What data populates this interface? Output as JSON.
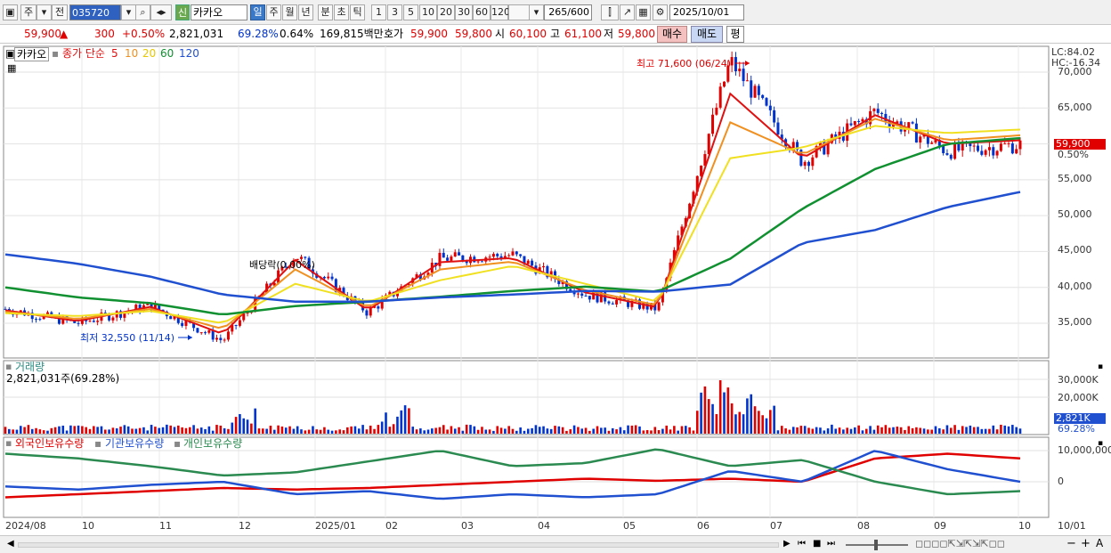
{
  "toolbar": {
    "market_select": "주",
    "prev_label": "전",
    "code": "035720",
    "shin_label": "신",
    "stock_name": "카카오",
    "periods": [
      "일",
      "주",
      "월",
      "년",
      "분",
      "초",
      "틱"
    ],
    "active_period": "일",
    "intervals": [
      "1",
      "3",
      "5",
      "10",
      "20",
      "30",
      "60",
      "120"
    ],
    "count": "265/600",
    "date": "2025/10/01"
  },
  "quote": {
    "price": "59,900",
    "change": "300",
    "change_pct": "+0.50%",
    "volume": "2,821,031",
    "volume_ratio": "69.28%",
    "turnover": "0.64%",
    "trade_value": "169,815백만",
    "bid_label": "호가",
    "ask": "59,900",
    "bid": "59,800",
    "open_label": "시",
    "open": "60,100",
    "high_label": "고",
    "high": "61,100",
    "low_label": "저",
    "low": "59,800",
    "buy_label": "매수",
    "sell_label": "매도",
    "avg_label": "평"
  },
  "price_panel": {
    "name_tag": "카카오",
    "ma_title": "종가 단순",
    "ma_periods": [
      "5",
      "10",
      "20",
      "60",
      "120"
    ],
    "lc": "LC:84.02",
    "hc": "HC:-16.34",
    "y_ticks": [
      "70,000",
      "65,000",
      "60,000",
      "55,000",
      "50,000",
      "45,000",
      "40,000",
      "35,000"
    ],
    "current_price_tag": "59,900",
    "current_pct_tag": "0.50%",
    "high_annotation": "최고 71,600 (06/24)",
    "low_annotation": "최저 32,550 (11/14)",
    "center_annotation": "배당락(0.00%)"
  },
  "volume_panel": {
    "title": "거래량",
    "value": "2,821,031주(69.28%)",
    "y_ticks": [
      "30,000K",
      "20,000K"
    ],
    "current_tag": "2,821K",
    "current_pct_tag": "69.28%"
  },
  "holdings_panel": {
    "legend": [
      "외국인보유수량",
      "기관보유수량",
      "개인보유수량"
    ],
    "y_ticks": [
      "10,000,000",
      "0"
    ]
  },
  "x_axis": [
    "2024/08",
    "10",
    "11",
    "12",
    "2025/01",
    "02",
    "03",
    "04",
    "05",
    "06",
    "07",
    "08",
    "09",
    "10",
    "10/01"
  ],
  "colors": {
    "up": "#e00000",
    "down": "#0033cc",
    "ma5": "#e01010",
    "ma10": "#f09020",
    "ma20": "#f0e020",
    "ma60": "#109030",
    "ma120": "#2050d0",
    "foreign": "#e00000",
    "institution": "#2050d0",
    "individual": "#2a8a50"
  },
  "chart_data": {
    "type": "line",
    "title": "",
    "x_range": [
      "2024/08",
      "2025/10/01"
    ],
    "ylim": [
      32000,
      72000
    ],
    "price_close": {
      "x": [
        "2024/08",
        "2024/09",
        "2024/10",
        "2024/11/14",
        "2024/12",
        "2025/01",
        "2025/02",
        "2025/03",
        "2025/04",
        "2025/05",
        "2025/06/24",
        "2025/07",
        "2025/08",
        "2025/09",
        "2025/10/01"
      ],
      "values": [
        37000,
        35000,
        37500,
        32550,
        44500,
        36500,
        44000,
        44500,
        39000,
        37000,
        71600,
        57500,
        64500,
        59000,
        59900
      ]
    },
    "series": [
      {
        "name": "5",
        "values": [
          36800,
          35300,
          37300,
          33500,
          43800,
          36800,
          43500,
          44100,
          39300,
          37200,
          67000,
          58000,
          64000,
          60000,
          60500
        ]
      },
      {
        "name": "10",
        "values": [
          36600,
          35600,
          37000,
          34200,
          42500,
          37200,
          42500,
          43600,
          39600,
          37500,
          63000,
          58500,
          63500,
          60500,
          61200
        ]
      },
      {
        "name": "20",
        "values": [
          36400,
          36000,
          36700,
          35000,
          40500,
          38000,
          41000,
          43000,
          40500,
          38000,
          58000,
          59500,
          62500,
          61500,
          62000
        ]
      },
      {
        "name": "60",
        "values": [
          40000,
          38600,
          37800,
          36200,
          37400,
          38000,
          38700,
          39500,
          40100,
          39400,
          44000,
          51000,
          56500,
          60000,
          60800
        ]
      },
      {
        "name": "120",
        "values": [
          44600,
          43300,
          41500,
          39000,
          38000,
          38000,
          38600,
          39000,
          39500,
          39400,
          40400,
          46200,
          48000,
          51200,
          53300
        ]
      }
    ],
    "volume": {
      "current": 2821031,
      "ylim": [
        0,
        35000000
      ]
    },
    "holdings": {
      "ylim": [
        -6000000,
        12000000
      ],
      "series": [
        {
          "name": "외국인보유수량",
          "values": [
            -5000000,
            -4000000,
            -3000000,
            -2000000,
            -2500000,
            -2000000,
            -1000000,
            0,
            1000000,
            300000,
            1000000,
            0,
            7500000,
            9000000,
            7500000
          ]
        },
        {
          "name": "기관보유수량",
          "values": [
            -1500000,
            -2500000,
            -1000000,
            0,
            -4000000,
            -3000000,
            -5500000,
            -4000000,
            -5000000,
            -4000000,
            3500000,
            0,
            10000000,
            4000000,
            0
          ]
        },
        {
          "name": "개인보유수량",
          "values": [
            9000000,
            7500000,
            5000000,
            2000000,
            3000000,
            6500000,
            10000000,
            5000000,
            6000000,
            10500000,
            5000000,
            7000000,
            0,
            -4000000,
            -3000000
          ]
        }
      ]
    }
  }
}
